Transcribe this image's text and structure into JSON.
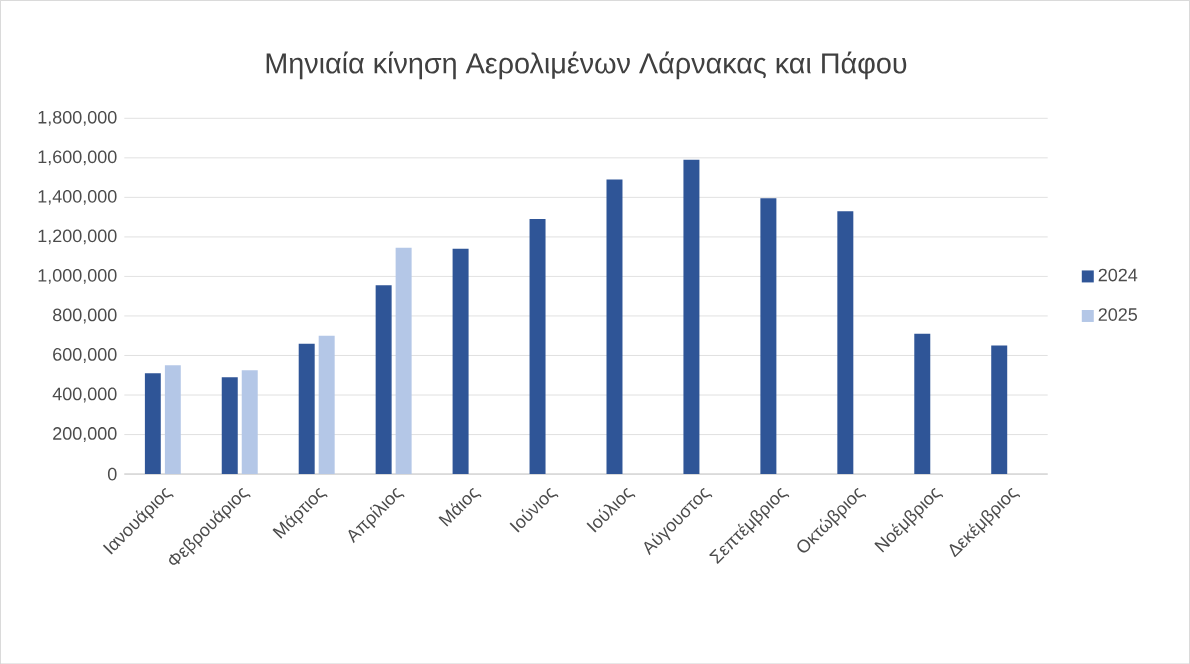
{
  "chart_data": {
    "type": "bar",
    "title": "Μηνιαία κίνηση Αερολιμένων Λάρνακας και Πάφου",
    "categories": [
      "Ιανουάριος",
      "Φεβρουάριος",
      "Μάρτιος",
      "Απρίλιος",
      "Μάιος",
      "Ιούνιος",
      "Ιούλιος",
      "Αύγουστος",
      "Σεπτέμβριος",
      "Οκτώβριος",
      "Νοέμβριος",
      "Δεκέμβριος"
    ],
    "series": [
      {
        "name": "2024",
        "color": "#2f5597",
        "values": [
          510000,
          490000,
          660000,
          955000,
          1140000,
          1290000,
          1490000,
          1590000,
          1395000,
          1330000,
          710000,
          650000
        ]
      },
      {
        "name": "2025",
        "color": "#b4c7e7",
        "values": [
          550000,
          525000,
          700000,
          1145000,
          null,
          null,
          null,
          null,
          null,
          null,
          null,
          null
        ]
      }
    ],
    "ylim": [
      0,
      1800000
    ],
    "yticks": [
      {
        "value": 0,
        "label": "0"
      },
      {
        "value": 200000,
        "label": "200,000"
      },
      {
        "value": 400000,
        "label": "400,000"
      },
      {
        "value": 600000,
        "label": "600,000"
      },
      {
        "value": 800000,
        "label": "800,000"
      },
      {
        "value": 1000000,
        "label": "1,000,000"
      },
      {
        "value": 1200000,
        "label": "1,200,000"
      },
      {
        "value": 1400000,
        "label": "1,400,000"
      },
      {
        "value": 1600000,
        "label": "1,600,000"
      },
      {
        "value": 1800000,
        "label": "1,800,000"
      }
    ],
    "grid": "y",
    "legend": "right"
  }
}
